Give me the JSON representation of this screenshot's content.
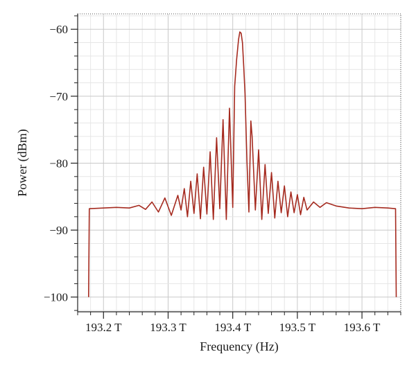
{
  "chart_data": {
    "type": "line",
    "title": "",
    "xlabel": "Frequency (Hz)",
    "ylabel": "Power (dBm)",
    "x_unit": "THz",
    "xlim": [
      193.16,
      193.66
    ],
    "ylim": [
      -102.2,
      -57.7
    ],
    "x_ticks": [
      193.2,
      193.3,
      193.4,
      193.5,
      193.6
    ],
    "x_tick_labels": [
      "193.2 T",
      "193.3 T",
      "193.4 T",
      "193.5 T",
      "193.6 T"
    ],
    "y_ticks": [
      -60,
      -70,
      -80,
      -90,
      -100
    ],
    "y_tick_labels": [
      "−60",
      "−70",
      "−80",
      "−90",
      "−100"
    ],
    "grid": true,
    "legend": "none",
    "series": [
      {
        "color": "#a52a1f",
        "x": [
          193.177,
          193.178,
          193.2,
          193.22,
          193.24,
          193.255,
          193.265,
          193.275,
          193.285,
          193.295,
          193.305,
          193.315,
          193.32,
          193.325,
          193.33,
          193.335,
          193.34,
          193.345,
          193.35,
          193.355,
          193.36,
          193.365,
          193.37,
          193.375,
          193.38,
          193.385,
          193.39,
          193.395,
          193.4,
          193.403,
          193.406,
          193.409,
          193.411,
          193.413,
          193.415,
          193.417,
          193.419,
          193.422,
          193.425,
          193.428,
          193.43,
          193.435,
          193.44,
          193.445,
          193.45,
          193.455,
          193.46,
          193.465,
          193.47,
          193.475,
          193.48,
          193.485,
          193.49,
          193.495,
          193.5,
          193.505,
          193.51,
          193.515,
          193.525,
          193.535,
          193.545,
          193.56,
          193.58,
          193.6,
          193.62,
          193.64,
          193.652,
          193.653
        ],
        "y": [
          -100,
          -86.8,
          -86.7,
          -86.6,
          -86.7,
          -86.3,
          -86.9,
          -85.8,
          -87.3,
          -85.2,
          -87.8,
          -84.8,
          -87.0,
          -83.8,
          -88.0,
          -82.7,
          -87.5,
          -81.6,
          -88.3,
          -80.6,
          -87.6,
          -78.3,
          -88.4,
          -76.2,
          -86.8,
          -73.5,
          -88.4,
          -71.8,
          -86.6,
          -68.5,
          -64.5,
          -61.5,
          -60.4,
          -60.6,
          -62.0,
          -65.5,
          -69.6,
          -79.8,
          -87.3,
          -73.7,
          -76.0,
          -87.0,
          -78.0,
          -88.4,
          -80.2,
          -87.5,
          -81.4,
          -88.2,
          -82.7,
          -87.4,
          -83.4,
          -88.0,
          -84.3,
          -87.4,
          -84.7,
          -87.7,
          -85.1,
          -87.0,
          -85.8,
          -86.6,
          -85.9,
          -86.4,
          -86.7,
          -86.8,
          -86.6,
          -86.7,
          -86.8,
          -100
        ]
      }
    ]
  }
}
